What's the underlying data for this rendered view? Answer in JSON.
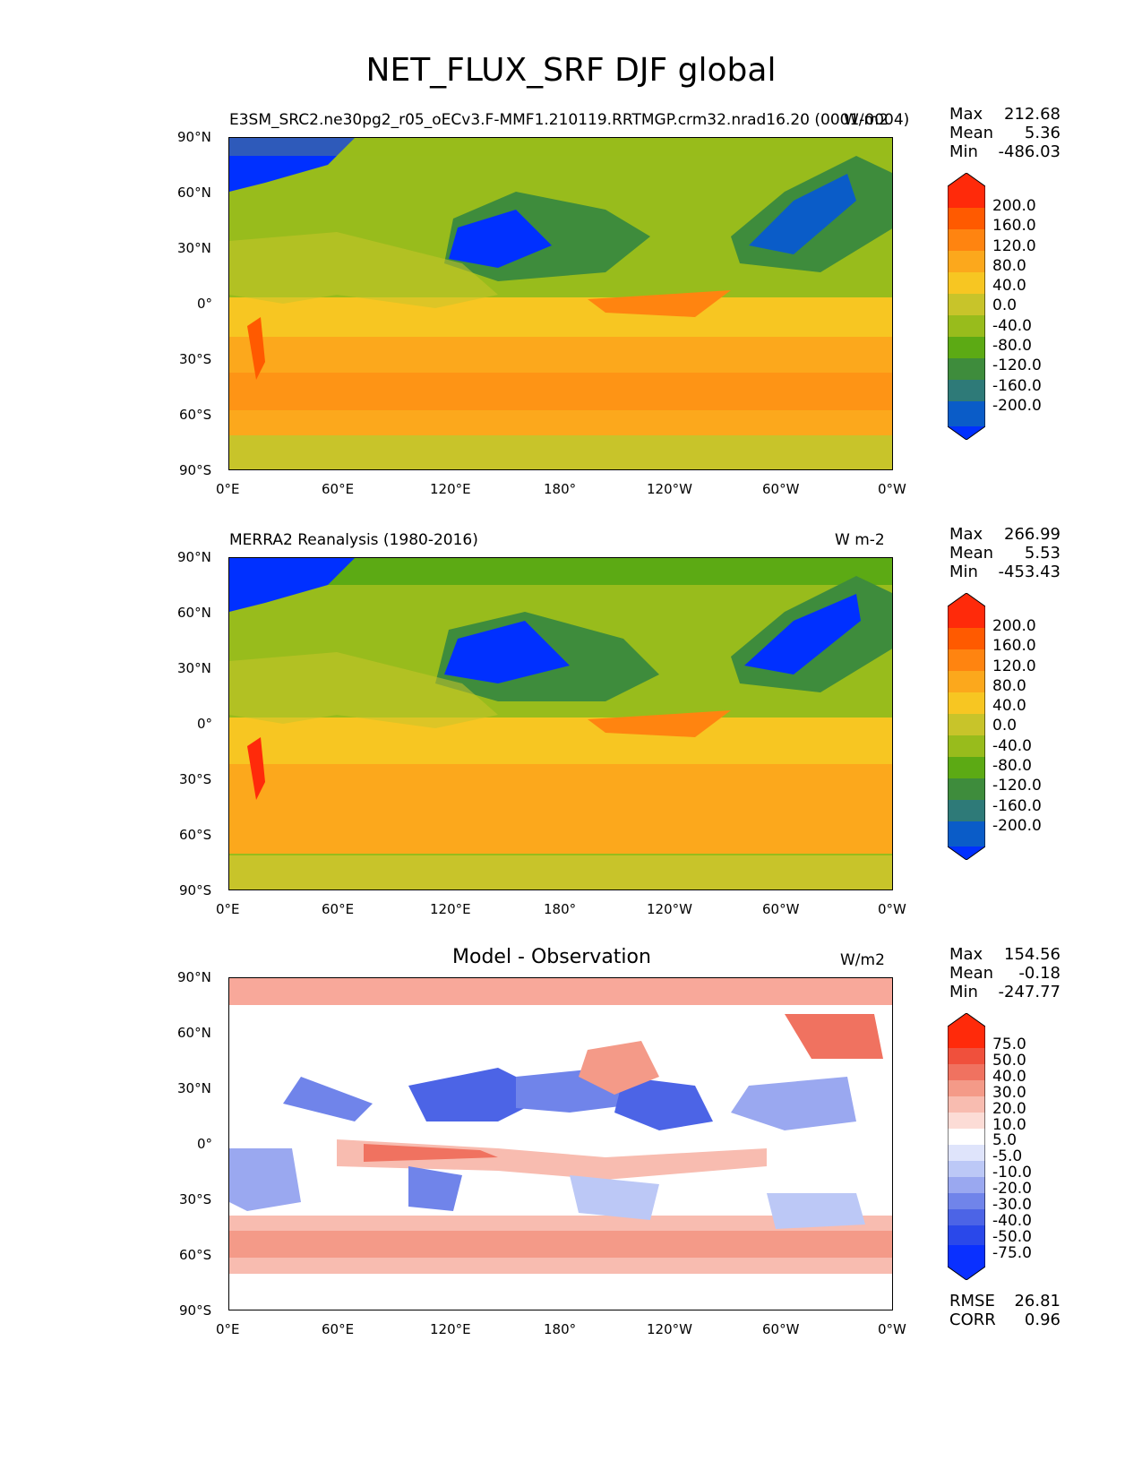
{
  "figure_title": "NET_FLUX_SRF DJF global",
  "x_ticks": [
    "0°E",
    "60°E",
    "120°E",
    "180°",
    "120°W",
    "60°W",
    "0°W"
  ],
  "y_ticks": [
    "90°N",
    "60°N",
    "30°N",
    "0°",
    "30°S",
    "60°S",
    "90°S"
  ],
  "panels": [
    {
      "left_title": "E3SM_SRC2.ne30pg2_r05_oECv3.F-MMF1.210119.RRTMGP.crm32.nrad16.20 (0001-0004)",
      "center_title": "",
      "right_title": "W/m2",
      "stats": [
        {
          "label": "Max",
          "value": "212.68"
        },
        {
          "label": "Mean",
          "value": "5.36"
        },
        {
          "label": "Min",
          "value": "-486.03"
        }
      ],
      "colorbar_labels": [
        "200.0",
        "160.0",
        "120.0",
        "80.0",
        "40.0",
        "0.0",
        "-40.0",
        "-80.0",
        "-120.0",
        "-160.0",
        "-200.0"
      ]
    },
    {
      "left_title": "MERRA2 Reanalysis (1980-2016)",
      "center_title": "",
      "right_title": "W m-2",
      "stats": [
        {
          "label": "Max",
          "value": "266.99"
        },
        {
          "label": "Mean",
          "value": "5.53"
        },
        {
          "label": "Min",
          "value": "-453.43"
        }
      ],
      "colorbar_labels": [
        "200.0",
        "160.0",
        "120.0",
        "80.0",
        "40.0",
        "0.0",
        "-40.0",
        "-80.0",
        "-120.0",
        "-160.0",
        "-200.0"
      ]
    },
    {
      "left_title": "",
      "center_title": "Model - Observation",
      "right_title": "W/m2",
      "stats": [
        {
          "label": "Max",
          "value": "154.56"
        },
        {
          "label": "Mean",
          "value": "-0.18"
        },
        {
          "label": "Min",
          "value": "-247.77"
        }
      ],
      "colorbar_labels": [
        "75.0",
        "50.0",
        "40.0",
        "30.0",
        "20.0",
        "10.0",
        "5.0",
        "-5.0",
        "-10.0",
        "-20.0",
        "-30.0",
        "-40.0",
        "-50.0",
        "-75.0"
      ],
      "extra_stats": [
        {
          "label": "RMSE",
          "value": "26.81"
        },
        {
          "label": "CORR",
          "value": "0.96"
        }
      ]
    }
  ],
  "colors": {
    "flux_scale": [
      "#ff2a0a",
      "#ff5a00",
      "#ff8410",
      "#fca81c",
      "#f7c622",
      "#c8c42a",
      "#98bc1c",
      "#5caa14",
      "#3e8c3c",
      "#2e7a78",
      "#0a5cc8",
      "#0030ff"
    ],
    "diff_scale": [
      "#ff2a0a",
      "#f0503c",
      "#f07260",
      "#f49a88",
      "#f8bcb0",
      "#fcdcd6",
      "#ffffff",
      "#dfe4fb",
      "#bcc8f6",
      "#9aa8f0",
      "#7084ea",
      "#4c64e6",
      "#2a48ea",
      "#0a30ff"
    ]
  }
}
